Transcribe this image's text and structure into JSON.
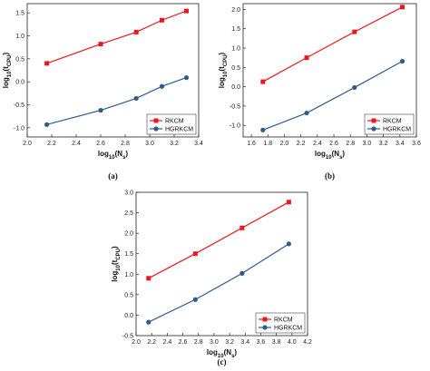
{
  "colors": {
    "rkcm": "#e8181c",
    "hgrkcm": "#2f5b8c",
    "axis": "#222222"
  },
  "chart_data": [
    {
      "type": "line",
      "caption": "(a)",
      "xlabel": "log10(Ns)",
      "ylabel": "log10(tCPU)",
      "xlim": [
        2.0,
        3.4
      ],
      "ylim": [
        -1.2,
        1.7
      ],
      "xticks": [
        "2.0",
        "2.2",
        "2.4",
        "2.6",
        "2.8",
        "3.0",
        "3.2",
        "3.4"
      ],
      "yticks": [
        "-1.0",
        "-0.5",
        "0.0",
        "0.5",
        "1.0",
        "1.5"
      ],
      "xtick_values": [
        2.0,
        2.2,
        2.4,
        2.6,
        2.8,
        3.0,
        3.2,
        3.4
      ],
      "ytick_values": [
        -1.0,
        -0.5,
        0.0,
        0.5,
        1.0,
        1.5
      ],
      "legend_position": "bottom-right",
      "series": [
        {
          "name": "RKCM",
          "marker": "square",
          "color_key": "rkcm",
          "x": [
            2.16,
            2.6,
            2.89,
            3.1,
            3.3
          ],
          "y": [
            0.4,
            0.82,
            1.08,
            1.34,
            1.54
          ]
        },
        {
          "name": "HGRKCM",
          "marker": "circle",
          "color_key": "hgrkcm",
          "x": [
            2.16,
            2.6,
            2.89,
            3.1,
            3.3
          ],
          "y": [
            -0.93,
            -0.62,
            -0.36,
            -0.1,
            0.09
          ]
        }
      ]
    },
    {
      "type": "line",
      "caption": "(b)",
      "xlabel": "log10(Ns)",
      "ylabel": "log10(tCPU)",
      "xlim": [
        1.5,
        3.6
      ],
      "ylim": [
        -1.3,
        2.15
      ],
      "xticks": [
        "1.6",
        "1.8",
        "2.0",
        "2.2",
        "2.4",
        "2.6",
        "2.8",
        "3.0",
        "3.2",
        "3.4",
        "3.6"
      ],
      "yticks": [
        "-1.0",
        "-0.5",
        "0.0",
        "0.5",
        "1.0",
        "1.5",
        "2.0"
      ],
      "xtick_values": [
        1.6,
        1.8,
        2.0,
        2.2,
        2.4,
        2.6,
        2.8,
        3.0,
        3.2,
        3.4,
        3.6
      ],
      "ytick_values": [
        -1.0,
        -0.5,
        0.0,
        0.5,
        1.0,
        1.5,
        2.0
      ],
      "legend_position": "bottom-right",
      "series": [
        {
          "name": "RKCM",
          "marker": "square",
          "color_key": "rkcm",
          "x": [
            1.74,
            2.27,
            2.85,
            3.43
          ],
          "y": [
            0.13,
            0.75,
            1.42,
            2.06
          ]
        },
        {
          "name": "HGRKCM",
          "marker": "circle",
          "color_key": "hgrkcm",
          "x": [
            1.74,
            2.27,
            2.85,
            3.43
          ],
          "y": [
            -1.12,
            -0.68,
            -0.02,
            0.66
          ]
        }
      ]
    },
    {
      "type": "line",
      "caption": "(c)",
      "xlabel": "log10(Ns)",
      "ylabel": "log10(tCPU)",
      "xlim": [
        2.0,
        4.2
      ],
      "ylim": [
        -0.5,
        3.0
      ],
      "xticks": [
        "2.0",
        "2.2",
        "2.4",
        "2.6",
        "2.8",
        "3.0",
        "3.2",
        "3.4",
        "3.6",
        "3.8",
        "4.0",
        "4.2"
      ],
      "yticks": [
        "-0.5",
        "0.0",
        "0.5",
        "1.0",
        "1.5",
        "2.0",
        "2.5",
        "3.0"
      ],
      "xtick_values": [
        2.0,
        2.2,
        2.4,
        2.6,
        2.8,
        3.0,
        3.2,
        3.4,
        3.6,
        3.8,
        4.0,
        4.2
      ],
      "ytick_values": [
        -0.5,
        0.0,
        0.5,
        1.0,
        1.5,
        2.0,
        2.5,
        3.0
      ],
      "legend_position": "bottom-right",
      "series": [
        {
          "name": "RKCM",
          "marker": "square",
          "color_key": "rkcm",
          "x": [
            2.16,
            2.76,
            3.36,
            3.96
          ],
          "y": [
            0.9,
            1.5,
            2.13,
            2.76
          ]
        },
        {
          "name": "HGRKCM",
          "marker": "circle",
          "color_key": "hgrkcm",
          "x": [
            2.16,
            2.76,
            3.36,
            3.96
          ],
          "y": [
            -0.17,
            0.38,
            1.02,
            1.74
          ]
        }
      ]
    }
  ]
}
